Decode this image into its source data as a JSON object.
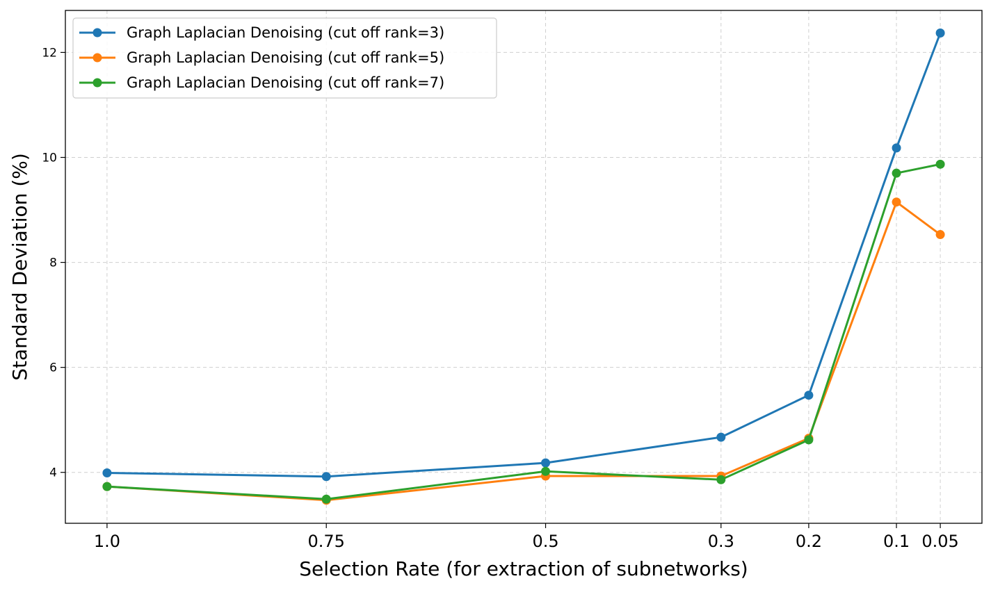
{
  "chart_data": {
    "type": "line",
    "title": "",
    "xlabel": "Selection Rate (for extraction of subnetworks)",
    "ylabel": "Standard Deviation (%)",
    "x": [
      1.0,
      0.75,
      0.5,
      0.3,
      0.2,
      0.1,
      0.05
    ],
    "x_tick_labels": [
      "1.0",
      "0.75",
      "0.5",
      "0.3",
      "0.2",
      "0.1",
      "0.05"
    ],
    "y_ticks": [
      4,
      6,
      8,
      10,
      12
    ],
    "y_tick_labels": [
      "4",
      "6",
      "8",
      "10",
      "12"
    ],
    "xlim": [
      1.0475,
      0.0025
    ],
    "ylim": [
      3.03,
      12.8
    ],
    "grid": true,
    "legend_position": "top-left",
    "series": [
      {
        "name": "Graph Laplacian Denoising (cut off rank=3)",
        "color": "#1f77b4",
        "values": [
          3.99,
          3.92,
          4.18,
          4.67,
          5.47,
          10.18,
          12.37
        ]
      },
      {
        "name": "Graph Laplacian Denoising (cut off rank=5)",
        "color": "#ff7f0e",
        "values": [
          3.73,
          3.47,
          3.93,
          3.93,
          4.65,
          9.15,
          8.53
        ]
      },
      {
        "name": "Graph Laplacian Denoising (cut off rank=7)",
        "color": "#2ca02c",
        "values": [
          3.73,
          3.49,
          4.02,
          3.86,
          4.62,
          9.7,
          9.87
        ]
      }
    ]
  }
}
